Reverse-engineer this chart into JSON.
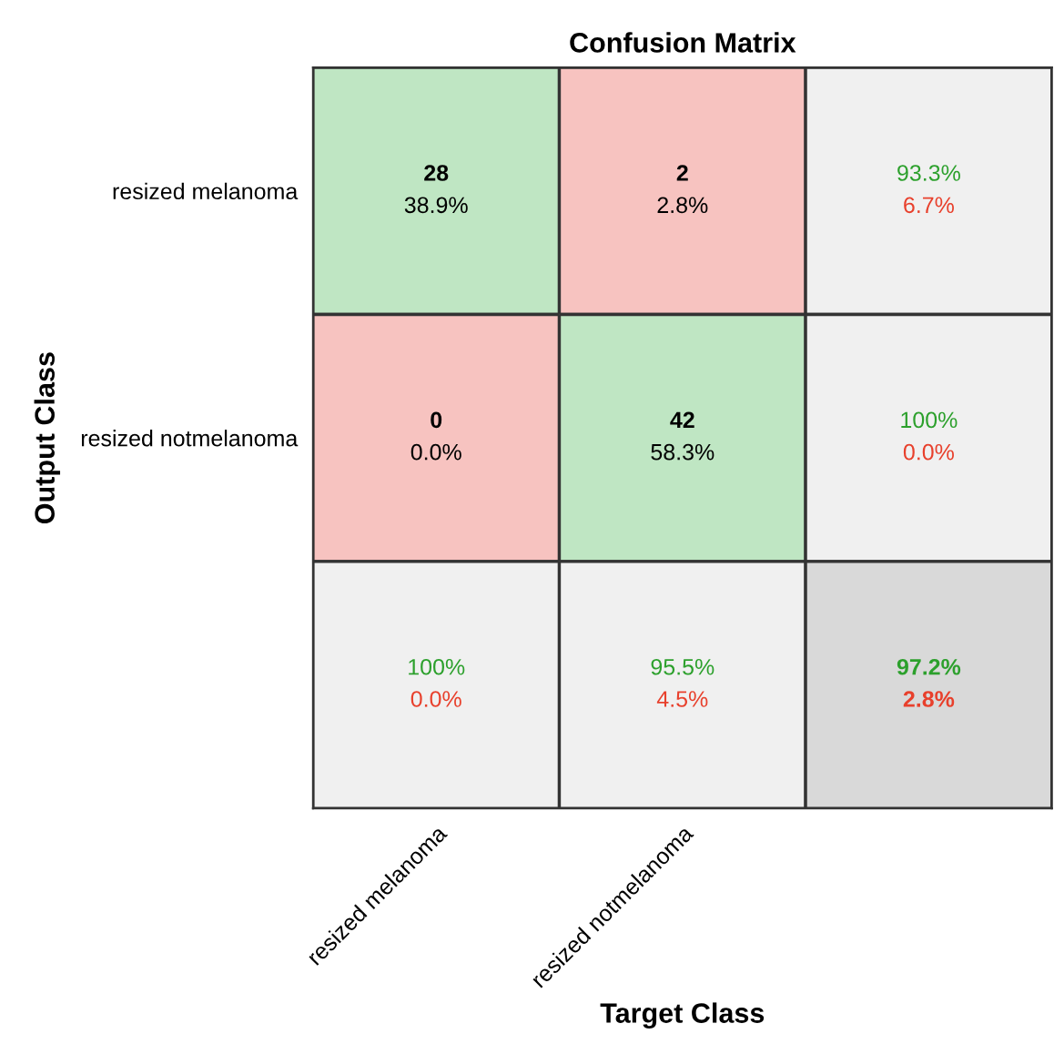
{
  "chart_data": {
    "type": "heatmap",
    "title": "Confusion Matrix",
    "xlabel": "Target Class",
    "ylabel": "Output Class",
    "categories": [
      "resized melanoma",
      "resized notmelanoma",
      null
    ],
    "y_categories": [
      "resized melanoma",
      "resized notmelanoma",
      null
    ],
    "cells": [
      [
        28,
        2,
        93.3
      ],
      [
        0,
        42,
        100
      ],
      [
        100,
        95.5,
        97.2
      ]
    ],
    "cell_labels": [
      [
        "28",
        "2",
        "93.3%"
      ],
      [
        "0",
        "42",
        "100%"
      ],
      [
        "100%",
        "95.5%",
        "97.2%"
      ]
    ],
    "annotations": [
      "38.9%",
      "2.8%",
      "6.7%",
      "0.0%",
      "58.3%",
      "0.0%",
      "0.0%",
      "4.5%",
      "2.8%"
    ]
  }
}
